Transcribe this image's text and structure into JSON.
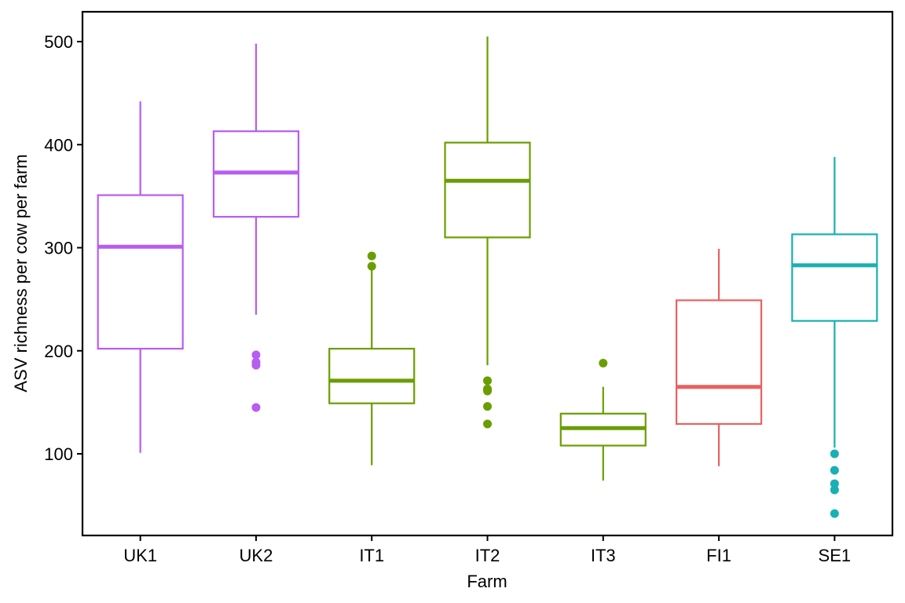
{
  "chart_data": {
    "type": "box",
    "xlabel": "Farm",
    "ylabel": "ASV richness per cow per farm",
    "ylim": [
      20,
      522
    ],
    "yticks": [
      100,
      200,
      300,
      400,
      500
    ],
    "grid": false,
    "legend": "none",
    "boxes": [
      {
        "category": "UK1",
        "color": "#B85CF2",
        "min": 101,
        "q1": 202,
        "median": 301,
        "q3": 351,
        "max": 442,
        "outliers": []
      },
      {
        "category": "UK2",
        "color": "#B85CF2",
        "min": 235,
        "q1": 330,
        "median": 373,
        "q3": 413,
        "max": 498,
        "outliers": [
          196,
          189,
          186,
          145
        ]
      },
      {
        "category": "IT1",
        "color": "#6A9E00",
        "min": 89,
        "q1": 149,
        "median": 171,
        "q3": 202,
        "max": 278,
        "outliers": [
          292,
          282
        ]
      },
      {
        "category": "IT2",
        "color": "#6A9E00",
        "min": 186,
        "q1": 310,
        "median": 365,
        "q3": 402,
        "max": 505,
        "outliers": [
          171,
          163,
          161,
          146,
          129
        ]
      },
      {
        "category": "IT3",
        "color": "#6A9E00",
        "min": 74,
        "q1": 108,
        "median": 125,
        "q3": 139,
        "max": 165,
        "outliers": [
          188
        ]
      },
      {
        "category": "FI1",
        "color": "#EC6060",
        "min": 88,
        "q1": 129,
        "median": 165,
        "q3": 249,
        "max": 299,
        "outliers": []
      },
      {
        "category": "SE1",
        "color": "#19B0B3",
        "min": 106,
        "q1": 229,
        "median": 283,
        "q3": 313,
        "max": 388,
        "outliers": [
          100,
          84,
          71,
          65,
          42
        ]
      }
    ]
  }
}
